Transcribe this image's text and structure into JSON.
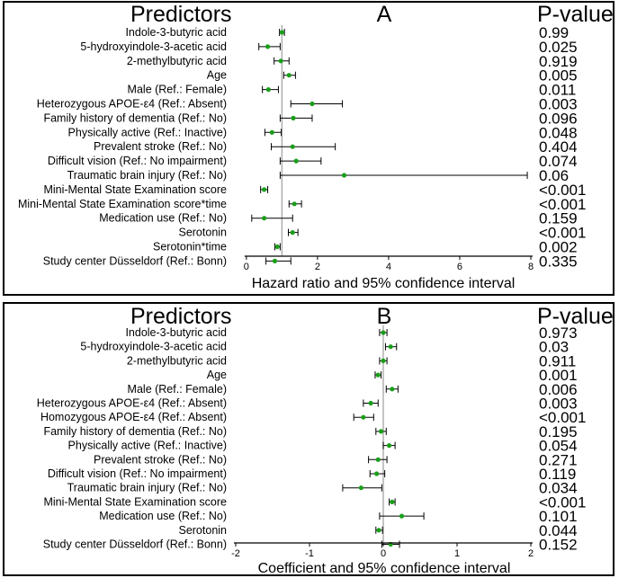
{
  "chart_data": [
    {
      "type": "forest",
      "panel_label": "A",
      "predictors_header": "Predictors",
      "pvalue_header": "P-value",
      "xlabel": "Hazard ratio and 95% confidence interval",
      "xlim": [
        -0.3,
        8.0
      ],
      "ticks": [
        0,
        2,
        4,
        6,
        8
      ],
      "tick_labels": [
        "0",
        "2",
        "4",
        "6",
        "8"
      ],
      "reference_line": 1,
      "marker_color": "#1a9e1a",
      "rows": [
        {
          "label": "Indole-3-butyric acid",
          "estimate": 1.0,
          "lower": 0.93,
          "upper": 1.07,
          "p": "0.99"
        },
        {
          "label": "5-hydroxyindole-3-acetic acid",
          "estimate": 0.6,
          "lower": 0.35,
          "upper": 0.95,
          "p": "0.025"
        },
        {
          "label": "2-methylbutyric acid",
          "estimate": 0.97,
          "lower": 0.78,
          "upper": 1.2,
          "p": "0.919"
        },
        {
          "label": "Age",
          "estimate": 1.2,
          "lower": 1.05,
          "upper": 1.38,
          "p": "0.005"
        },
        {
          "label": "Male (Ref.:  Female)",
          "estimate": 0.62,
          "lower": 0.45,
          "upper": 0.9,
          "p": "0.011"
        },
        {
          "label": "Heterozygous APOE-ε4 (Ref.: Absent)",
          "estimate": 1.85,
          "lower": 1.25,
          "upper": 2.7,
          "p": "0.003"
        },
        {
          "label": "Family history of dementia (Ref.:  No)",
          "estimate": 1.32,
          "lower": 0.95,
          "upper": 1.85,
          "p": "0.096"
        },
        {
          "label": "Physically active (Ref.: Inactive)",
          "estimate": 0.72,
          "lower": 0.52,
          "upper": 0.98,
          "p": "0.048"
        },
        {
          "label": "Prevalent stroke (Ref.: No)",
          "estimate": 1.3,
          "lower": 0.7,
          "upper": 2.5,
          "p": "0.404"
        },
        {
          "label": "Difficult vision (Ref.: No impairment)",
          "estimate": 1.4,
          "lower": 0.95,
          "upper": 2.1,
          "p": "0.074"
        },
        {
          "label": "Traumatic brain injury (Ref.: No)",
          "estimate": 2.75,
          "lower": 0.95,
          "upper": 7.9,
          "p": "0.06"
        },
        {
          "label": "Mini-Mental State Examination score",
          "estimate": 0.5,
          "lower": 0.4,
          "upper": 0.6,
          "p": "<0.001"
        },
        {
          "label": "Mini-Mental State Examination score*time",
          "estimate": 1.35,
          "lower": 1.2,
          "upper": 1.55,
          "p": "<0.001"
        },
        {
          "label": "Medication use (Ref.: No)",
          "estimate": 0.5,
          "lower": 0.15,
          "upper": 1.3,
          "p": "0.159"
        },
        {
          "label": "Serotonin",
          "estimate": 1.3,
          "lower": 1.18,
          "upper": 1.45,
          "p": "<0.001"
        },
        {
          "label": "Serotonin*time",
          "estimate": 0.87,
          "lower": 0.8,
          "upper": 0.95,
          "p": "0.002"
        },
        {
          "label": "Study center Düsseldorf (Ref.: Bonn)",
          "estimate": 0.8,
          "lower": 0.55,
          "upper": 1.25,
          "p": "0.335"
        }
      ]
    },
    {
      "type": "forest",
      "panel_label": "B",
      "predictors_header": "Predictors",
      "pvalue_header": "P-value",
      "xlabel": "Coefficient and 95% confidence interval",
      "xlim": [
        -2.0,
        2.0
      ],
      "ticks": [
        -2,
        -1,
        0,
        1,
        2
      ],
      "tick_labels": [
        "-2",
        "-1",
        "0",
        "1",
        "2"
      ],
      "reference_line": 0,
      "marker_color": "#1a9e1a",
      "rows": [
        {
          "label": "Indole-3-butyric acid",
          "estimate": 0.0,
          "lower": -0.05,
          "upper": 0.05,
          "p": "0.973"
        },
        {
          "label": "5-hydroxyindole-3-acetic acid",
          "estimate": 0.1,
          "lower": 0.03,
          "upper": 0.18,
          "p": "0.03"
        },
        {
          "label": "2-methylbutyric acid",
          "estimate": 0.0,
          "lower": -0.05,
          "upper": 0.05,
          "p": "0.911"
        },
        {
          "label": "Age",
          "estimate": -0.07,
          "lower": -0.11,
          "upper": -0.03,
          "p": "0.001"
        },
        {
          "label": "Male (Ref.:  Female)",
          "estimate": 0.12,
          "lower": 0.04,
          "upper": 0.2,
          "p": "0.006"
        },
        {
          "label": "Heterozygous APOE-ε4 (Ref.: Absent)",
          "estimate": -0.17,
          "lower": -0.27,
          "upper": -0.07,
          "p": "0.003"
        },
        {
          "label": "Homozygous APOE-ε4  (Ref.: Absent)",
          "estimate": -0.27,
          "lower": -0.4,
          "upper": -0.13,
          "p": "<0.001"
        },
        {
          "label": "Family history of dementia (Ref.:  No)",
          "estimate": -0.03,
          "lower": -0.1,
          "upper": 0.04,
          "p": "0.195"
        },
        {
          "label": "Physically active (Ref.: Inactive)",
          "estimate": 0.08,
          "lower": 0.0,
          "upper": 0.16,
          "p": "0.054"
        },
        {
          "label": "Prevalent stroke (Ref.: No)",
          "estimate": -0.07,
          "lower": -0.2,
          "upper": 0.05,
          "p": "0.271"
        },
        {
          "label": "Difficult vision (Ref.: No impairment)",
          "estimate": -0.09,
          "lower": -0.18,
          "upper": 0.02,
          "p": "0.119"
        },
        {
          "label": "Traumatic brain injury (Ref.: No)",
          "estimate": -0.3,
          "lower": -0.55,
          "upper": -0.02,
          "p": "0.034"
        },
        {
          "label": "Mini-Mental State Examination score",
          "estimate": 0.12,
          "lower": 0.08,
          "upper": 0.16,
          "p": "<0.001"
        },
        {
          "label": "Medication use (Ref.: No)",
          "estimate": 0.25,
          "lower": -0.05,
          "upper": 0.55,
          "p": "0.101"
        },
        {
          "label": "Serotonin",
          "estimate": -0.06,
          "lower": -0.1,
          "upper": -0.01,
          "p": "0.044"
        },
        {
          "label": "Study center Düsseldorf (Ref.: Bonn)",
          "estimate": 0.1,
          "lower": -0.02,
          "upper": 0.22,
          "p": "0.152"
        }
      ]
    }
  ]
}
